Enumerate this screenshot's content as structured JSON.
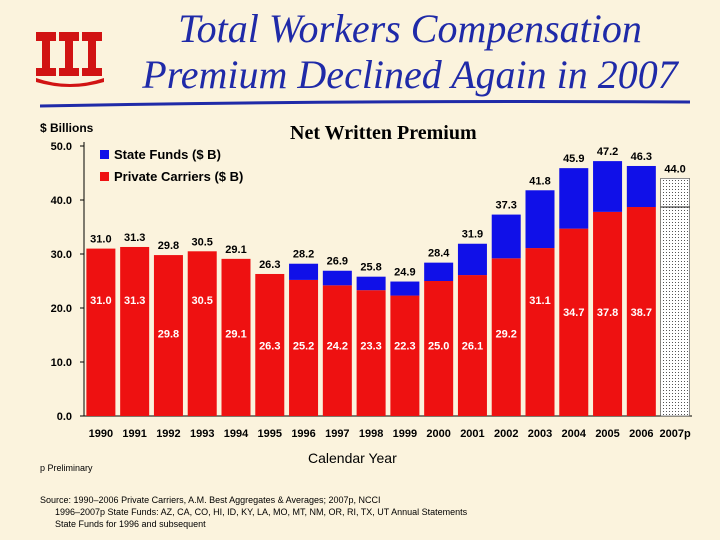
{
  "title_line1": "Total Workers Compensation",
  "title_line2": "Premium Declined Again in 2007",
  "logo_icon": "iii-logo-icon",
  "colors": {
    "state": "#1010e8",
    "private": "#ee1111",
    "title": "#1f2aa8",
    "background": "#fbf3dd"
  },
  "chart_data": {
    "type": "bar",
    "stacked": true,
    "title": "Net Written Premium",
    "ylabel": "$ Billions",
    "xlabel": "Calendar Year",
    "ylim": [
      0,
      50
    ],
    "yticks": [
      "0.0",
      "10.0",
      "20.0",
      "30.0",
      "40.0",
      "50.0"
    ],
    "legend_position": "top-left",
    "categories": [
      "1990",
      "1991",
      "1992",
      "1993",
      "1994",
      "1995",
      "1996",
      "1997",
      "1998",
      "1999",
      "2000",
      "2001",
      "2002",
      "2003",
      "2004",
      "2005",
      "2006",
      "2007p"
    ],
    "series": [
      {
        "name": "Private Carriers ($ B)",
        "values": [
          31.0,
          31.3,
          29.8,
          30.5,
          29.1,
          26.3,
          25.2,
          24.2,
          23.3,
          22.3,
          25.0,
          26.1,
          29.2,
          31.1,
          34.7,
          37.8,
          38.7,
          38.7
        ],
        "labels": [
          "31.0",
          "31.3",
          "29.8",
          "30.5",
          "29.1",
          "26.3",
          "25.2",
          "24.2",
          "23.3",
          "22.3",
          "25.0",
          "26.1",
          "29.2",
          "31.1",
          "34.7",
          "37.8",
          "38.7",
          ""
        ]
      },
      {
        "name": "State Funds ($ B)",
        "values": [
          0,
          0,
          0,
          0,
          0,
          0,
          3.0,
          2.7,
          2.5,
          2.6,
          3.4,
          5.8,
          8.1,
          10.7,
          11.2,
          9.4,
          7.6,
          5.3
        ],
        "labels": [
          "",
          "",
          "",
          "",
          "",
          "",
          "",
          "",
          "",
          "",
          "",
          "",
          "",
          "",
          "",
          "",
          "",
          ""
        ]
      }
    ],
    "totals": [
      "31.0",
      "31.3",
      "29.8",
      "30.5",
      "29.1",
      "26.3",
      "28.2",
      "26.9",
      "25.8",
      "24.9",
      "28.4",
      "31.9",
      "37.3",
      "41.8",
      "45.9",
      "47.2",
      "46.3",
      "44.0"
    ],
    "preliminary_category": "2007p"
  },
  "footnote": "p Preliminary",
  "source_lines": [
    "Source: 1990–2006 Private Carriers, A.M. Best Aggregates & Averages; 2007p, NCCI",
    "1996–2007p State Funds: AZ, CA, CO, HI, ID, KY, LA, MO, MT, NM, OR, RI, TX, UT Annual Statements",
    "State Funds for 1996 and subsequent"
  ]
}
